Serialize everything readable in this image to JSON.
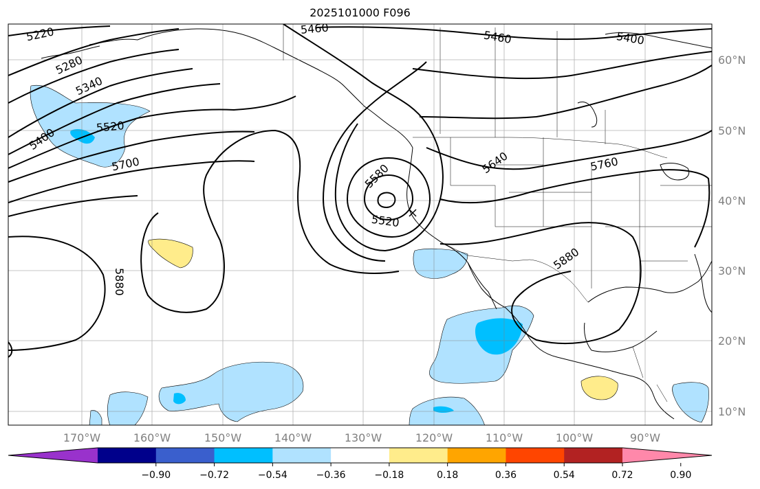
{
  "title": "2025101000 F096",
  "map": {
    "lon_range": [
      -180,
      -80
    ],
    "lat_range": [
      8,
      65
    ],
    "lon_labels": [
      "170°W",
      "160°W",
      "150°W",
      "140°W",
      "130°W",
      "120°W",
      "110°W",
      "100°W",
      "90°W"
    ],
    "lat_labels": [
      "60°N",
      "50°N",
      "40°N",
      "30°N",
      "20°N",
      "10°N"
    ],
    "contour_labels": [
      "5220",
      "5280",
      "5340",
      "5400",
      "5520",
      "5700",
      "5460",
      "5460",
      "5400",
      "5580",
      "5520",
      "5640",
      "5760",
      "5880",
      "5880"
    ]
  },
  "colorbar": {
    "colors": [
      "#9932cc",
      "#00008b",
      "#3a5fcd",
      "#00bfff",
      "#b0e2ff",
      "#ffffff",
      "#ffec8b",
      "#ffa500",
      "#ff4500",
      "#b22222",
      "#ff88aa"
    ],
    "tick_labels": [
      "−0.90",
      "−0.72",
      "−0.54",
      "−0.36",
      "−0.18",
      "0.18",
      "0.36",
      "0.54",
      "0.72",
      "0.90"
    ]
  }
}
